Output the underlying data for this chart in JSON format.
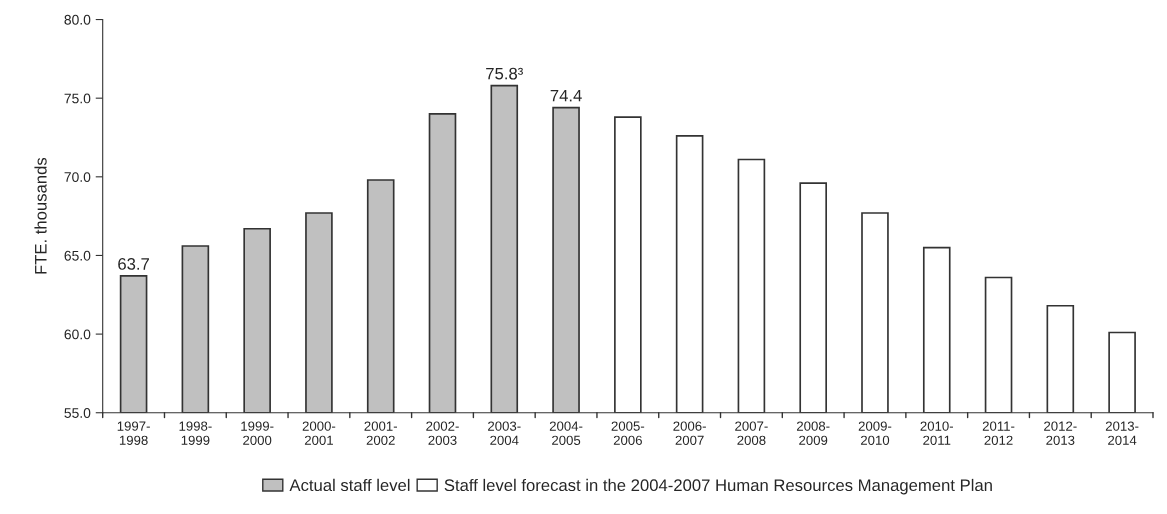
{
  "chart_data": {
    "type": "bar",
    "ylabel": "FTE. thousands",
    "categories": [
      "1997-\n1998",
      "1998-\n1999",
      "1999-\n2000",
      "2000-\n2001",
      "2001-\n2002",
      "2002-\n2003",
      "2003-\n2004",
      "2004-\n2005",
      "2005-\n2006",
      "2006-\n2007",
      "2007-\n2008",
      "2008-\n2009",
      "2009-\n2010",
      "2010-\n2011",
      "2011-\n2012",
      "2012-\n2013",
      "2013-\n2014"
    ],
    "series": [
      {
        "name": "Actual staff level",
        "color": "#c0c0c0",
        "values": [
          63.7,
          65.6,
          66.7,
          67.7,
          69.8,
          74.0,
          75.8,
          74.4,
          null,
          null,
          null,
          null,
          null,
          null,
          null,
          null,
          null
        ],
        "value_labels": [
          "63.7",
          null,
          null,
          null,
          null,
          null,
          "75.8³",
          "74.4",
          null,
          null,
          null,
          null,
          null,
          null,
          null,
          null,
          null
        ]
      },
      {
        "name": "Staff level forecast in the 2004-2007 Human Resources Management Plan",
        "color": "#ffffff",
        "values": [
          null,
          null,
          null,
          null,
          null,
          null,
          null,
          null,
          73.8,
          72.6,
          71.1,
          69.6,
          67.7,
          65.5,
          63.6,
          61.8,
          60.1
        ]
      }
    ],
    "ylim": [
      55,
      80
    ],
    "yticks": [
      {
        "value": 55,
        "label": "55.0"
      },
      {
        "value": 60,
        "label": "60.0"
      },
      {
        "value": 65,
        "label": "65.0"
      },
      {
        "value": 70,
        "label": "70.0"
      },
      {
        "value": 75,
        "label": "75.0"
      },
      {
        "value": 80,
        "label": "80.0"
      }
    ],
    "grid": false,
    "legend": "bottom"
  }
}
